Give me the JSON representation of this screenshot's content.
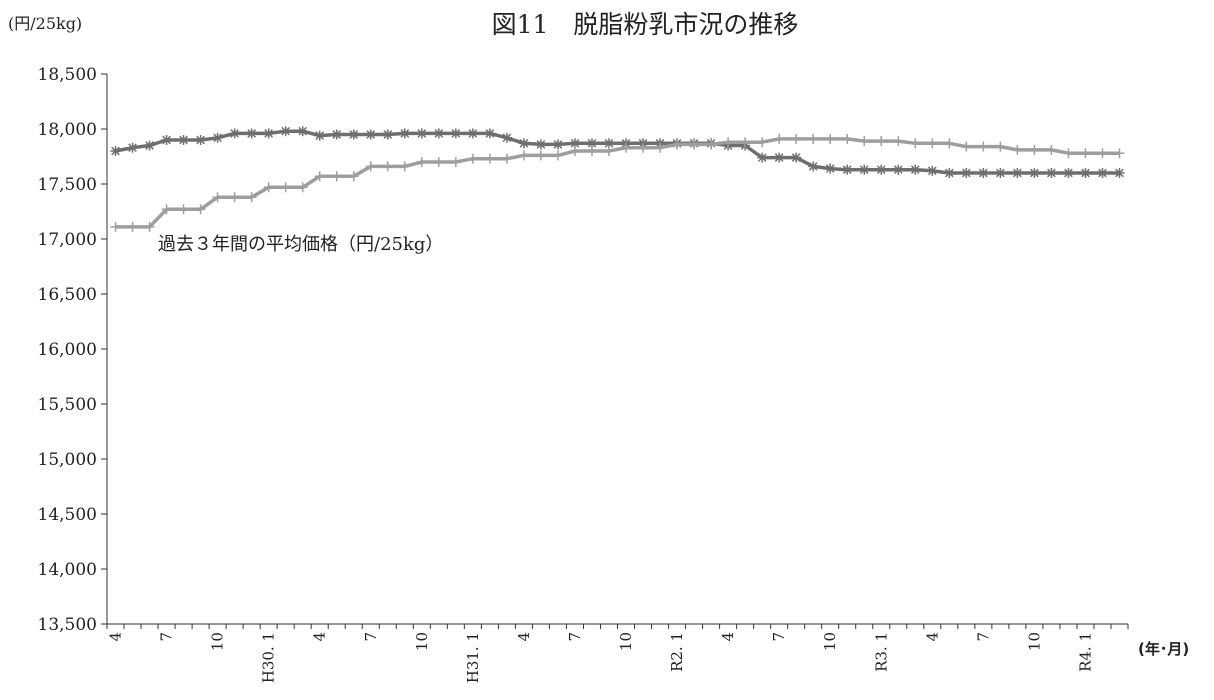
{
  "chart_data": {
    "type": "line",
    "title": "図11　脱脂粉乳市況の推移",
    "ylabel": "(円/25kg)",
    "xlabel": "(年･月)",
    "ylim": [
      13500,
      18500
    ],
    "yticks": [
      13500,
      14000,
      14500,
      15000,
      15500,
      16000,
      16500,
      17000,
      17500,
      18000,
      18500
    ],
    "ytick_labels": [
      "13,500",
      "14,000",
      "14,500",
      "15,000",
      "15,500",
      "16,000",
      "16,500",
      "17,000",
      "17,500",
      "18,000",
      "18,500"
    ],
    "x_tick_labels": [
      "4",
      "",
      "",
      "7",
      "",
      "",
      "10",
      "",
      "",
      "H30. 1",
      "",
      "",
      "4",
      "",
      "",
      "7",
      "",
      "",
      "10",
      "",
      "",
      "H31. 1",
      "",
      "",
      "4",
      "",
      "",
      "7",
      "",
      "",
      "10",
      "",
      "",
      "R2. 1",
      "",
      "",
      "4",
      "",
      "",
      "7",
      "",
      "",
      "10",
      "",
      "",
      "R3. 1",
      "",
      "",
      "4",
      "",
      "",
      "7",
      "",
      "",
      "10",
      "",
      "",
      "R4. 1",
      "",
      ""
    ],
    "annotation": "過去３年間の平均価格（円/25kg）",
    "series": [
      {
        "marker": "star",
        "color": "#6e6e6e",
        "values": [
          17800,
          17830,
          17850,
          17900,
          17900,
          17900,
          17920,
          17960,
          17960,
          17960,
          17980,
          17980,
          17940,
          17950,
          17950,
          17950,
          17950,
          17960,
          17960,
          17960,
          17960,
          17960,
          17960,
          17920,
          17870,
          17860,
          17860,
          17870,
          17870,
          17870,
          17870,
          17870,
          17870,
          17870,
          17870,
          17870,
          17850,
          17850,
          17740,
          17740,
          17740,
          17660,
          17640,
          17630,
          17630,
          17630,
          17630,
          17630,
          17620,
          17600,
          17600,
          17600,
          17600,
          17600,
          17600,
          17600,
          17600,
          17600,
          17600,
          17600
        ]
      },
      {
        "name": "過去３年間の平均価格（円/25kg）",
        "marker": "plus",
        "color": "#9e9e9e",
        "values": [
          17110,
          17110,
          17110,
          17270,
          17270,
          17270,
          17380,
          17380,
          17380,
          17470,
          17470,
          17470,
          17570,
          17570,
          17570,
          17660,
          17660,
          17660,
          17700,
          17700,
          17700,
          17730,
          17730,
          17730,
          17760,
          17760,
          17760,
          17800,
          17800,
          17800,
          17830,
          17830,
          17830,
          17860,
          17860,
          17860,
          17880,
          17880,
          17880,
          17910,
          17910,
          17910,
          17910,
          17910,
          17890,
          17890,
          17890,
          17870,
          17870,
          17870,
          17840,
          17840,
          17840,
          17810,
          17810,
          17810,
          17780,
          17780,
          17780,
          17780
        ]
      }
    ]
  }
}
